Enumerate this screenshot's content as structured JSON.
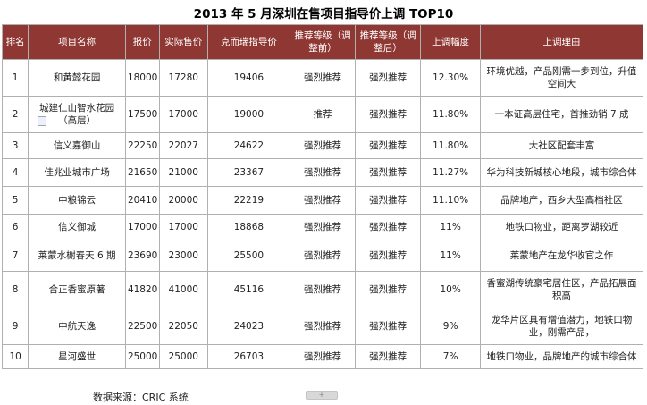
{
  "title": "2013 年 5 月深圳在售项目指导价上调 TOP10",
  "headers": {
    "rank": "排名",
    "name": "项目名称",
    "quote": "报价",
    "actual": "实际售价",
    "guide": "克而瑞指导价",
    "before": "推荐等级（调整前）",
    "after": "推荐等级（调整后）",
    "raise": "上调幅度",
    "reason": "上调理由"
  },
  "rows": [
    {
      "rank": "1",
      "name": "和黄懿花园",
      "quote": "18000",
      "actual": "17280",
      "guide": "19406",
      "before": "强烈推荐",
      "after": "强烈推荐",
      "raise": "12.30%",
      "reason": "环境优越，产品刚需一步到位，升值空间大"
    },
    {
      "rank": "2",
      "name": "城建仁山智水花园（高层）",
      "quote": "17500",
      "actual": "17000",
      "guide": "19000",
      "before": "推荐",
      "after": "强烈推荐",
      "raise": "11.80%",
      "reason": "一本证高层住宅，首推劲销 7 成"
    },
    {
      "rank": "3",
      "name": "信义嘉御山",
      "quote": "22250",
      "actual": "22027",
      "guide": "24622",
      "before": "强烈推荐",
      "after": "强烈推荐",
      "raise": "11.80%",
      "reason": "大社区配套丰富"
    },
    {
      "rank": "4",
      "name": "佳兆业城市广场",
      "quote": "21650",
      "actual": "21000",
      "guide": "23367",
      "before": "强烈推荐",
      "after": "强烈推荐",
      "raise": "11.27%",
      "reason": "华为科技新城核心地段，城市综合体"
    },
    {
      "rank": "5",
      "name": "中粮锦云",
      "quote": "20410",
      "actual": "20000",
      "guide": "22219",
      "before": "强烈推荐",
      "after": "强烈推荐",
      "raise": "11.10%",
      "reason": "品牌地产，西乡大型高档社区"
    },
    {
      "rank": "6",
      "name": "信义御城",
      "quote": "17000",
      "actual": "17000",
      "guide": "18868",
      "before": "强烈推荐",
      "after": "强烈推荐",
      "raise": "11%",
      "reason": "地铁口物业，距离罗湖较近"
    },
    {
      "rank": "7",
      "name": "莱蒙水榭春天 6 期",
      "quote": "23690",
      "actual": "23000",
      "guide": "25500",
      "before": "强烈推荐",
      "after": "强烈推荐",
      "raise": "11%",
      "reason": "莱蒙地产在龙华收官之作"
    },
    {
      "rank": "8",
      "name": "合正香蜜原著",
      "quote": "41820",
      "actual": "41000",
      "guide": "45116",
      "before": "强烈推荐",
      "after": "强烈推荐",
      "raise": "10%",
      "reason": "香蜜湖传统豪宅居住区，产品拓展面积高"
    },
    {
      "rank": "9",
      "name": "中航天逸",
      "quote": "22500",
      "actual": "22050",
      "guide": "24023",
      "before": "强烈推荐",
      "after": "强烈推荐",
      "raise": "9%",
      "reason": "龙华片区具有增值潜力，地铁口物业，刚需产品，"
    },
    {
      "rank": "10",
      "name": "星河盛世",
      "quote": "25000",
      "actual": "25000",
      "guide": "26703",
      "before": "强烈推荐",
      "after": "强烈推荐",
      "raise": "7%",
      "reason": "地铁口物业，品牌地产的城市综合体"
    }
  ],
  "source": "数据来源：CRIC 系统",
  "tab_handle": "+",
  "colors": {
    "header_bg": "#8e3733",
    "header_text": "#ffffff",
    "border": "#b0b0b0"
  }
}
